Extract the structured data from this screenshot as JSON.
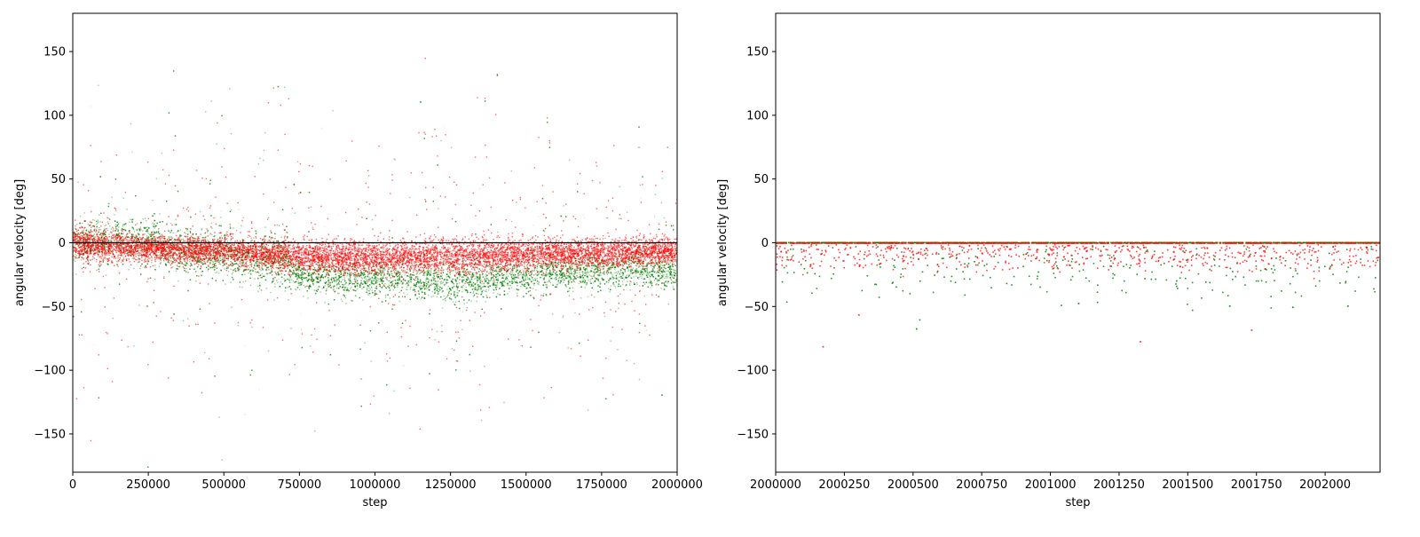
{
  "colors": {
    "series_a": "#008000",
    "series_b": "#ff0000",
    "zero_line": "#000000",
    "background": "#ffffff"
  },
  "chart_data": [
    {
      "type": "scatter",
      "title": "",
      "xlabel": "step",
      "ylabel": "angular velocity [deg]",
      "xlim": [
        0,
        2000000
      ],
      "ylim": [
        -180,
        180
      ],
      "x_ticks": [
        0,
        250000,
        500000,
        750000,
        1000000,
        1250000,
        1500000,
        1750000,
        2000000
      ],
      "x_tick_labels": [
        "0",
        "250000",
        "500000",
        "750000",
        "1000000",
        "1250000",
        "1500000",
        "1750000",
        "2000000"
      ],
      "y_ticks": [
        -150,
        -100,
        -50,
        0,
        50,
        100,
        150
      ],
      "y_tick_labels": [
        "−150",
        "−100",
        "−50",
        "0",
        "50",
        "100",
        "150"
      ],
      "grid": false,
      "legend": "none",
      "reference_line_y": 0,
      "series": [
        {
          "color": "#008000",
          "alpha": 0.08,
          "profile": [
            {
              "x": 0,
              "mean": 0,
              "spread": 14
            },
            {
              "x": 200000,
              "mean": 4,
              "spread": 18
            },
            {
              "x": 400000,
              "mean": -8,
              "spread": 16
            },
            {
              "x": 700000,
              "mean": -14,
              "spread": 18
            },
            {
              "x": 750000,
              "mean": -26,
              "spread": 10
            },
            {
              "x": 1250000,
              "mean": -30,
              "spread": 14
            },
            {
              "x": 1500000,
              "mean": -26,
              "spread": 12
            },
            {
              "x": 1750000,
              "mean": -22,
              "spread": 12
            },
            {
              "x": 2000000,
              "mean": -20,
              "spread": 14
            }
          ]
        },
        {
          "color": "#ff0000",
          "alpha": 0.12,
          "profile": [
            {
              "x": 0,
              "mean": 0,
              "spread": 12
            },
            {
              "x": 250000,
              "mean": -4,
              "spread": 9
            },
            {
              "x": 500000,
              "mean": -6,
              "spread": 10
            },
            {
              "x": 750000,
              "mean": -10,
              "spread": 11
            },
            {
              "x": 1000000,
              "mean": -12,
              "spread": 11
            },
            {
              "x": 1250000,
              "mean": -10,
              "spread": 12
            },
            {
              "x": 1500000,
              "mean": -9,
              "spread": 11
            },
            {
              "x": 1750000,
              "mean": -8,
              "spread": 10
            },
            {
              "x": 2000000,
              "mean": -6,
              "spread": 9
            }
          ]
        }
      ]
    },
    {
      "type": "scatter",
      "title": "",
      "xlabel": "step",
      "ylabel": "angular velocity [deg]",
      "xlim": [
        2000000,
        2002200
      ],
      "ylim": [
        -180,
        180
      ],
      "x_ticks": [
        2000000,
        2000250,
        2000500,
        2000750,
        2001000,
        2001250,
        2001500,
        2001750,
        2002000
      ],
      "x_tick_labels": [
        "2000000",
        "2000250",
        "2000500",
        "2000750",
        "2001000",
        "2001250",
        "2001500",
        "2001750",
        "2002000"
      ],
      "y_ticks": [
        -150,
        -100,
        -50,
        0,
        50,
        100,
        150
      ],
      "y_tick_labels": [
        "−150",
        "−100",
        "−50",
        "0",
        "50",
        "100",
        "150"
      ],
      "grid": false,
      "legend": "none",
      "series": [
        {
          "color": "#008000",
          "alpha": 0.85,
          "zero_band": true,
          "scatter_mean": -20,
          "scatter_spread": 12,
          "outliers": [
            {
              "x": 2000510,
              "y": -67
            },
            {
              "x": 2001100,
              "y": -47
            },
            {
              "x": 2001650,
              "y": -49
            },
            {
              "x": 2001880,
              "y": -50
            },
            {
              "x": 2002080,
              "y": -49
            }
          ]
        },
        {
          "color": "#ff0000",
          "alpha": 0.75,
          "zero_band": true,
          "scatter_mean": -9,
          "scatter_spread": 6,
          "outliers": [
            {
              "x": 2000170,
              "y": -81
            },
            {
              "x": 2000300,
              "y": -56
            },
            {
              "x": 2001325,
              "y": -77
            },
            {
              "x": 2001730,
              "y": -68
            }
          ]
        }
      ]
    }
  ]
}
